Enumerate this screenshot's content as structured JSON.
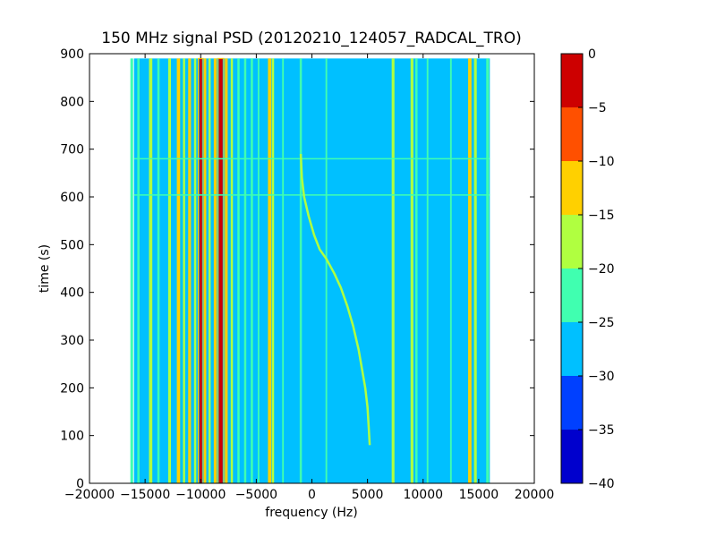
{
  "chart_data": {
    "type": "heatmap",
    "title": "150 MHz signal PSD (20120210_124057_RADCAL_TRO)",
    "xlabel": "frequency (Hz)",
    "ylabel": "time (s)",
    "xlim": [
      -20000,
      20000
    ],
    "ylim": [
      0,
      900
    ],
    "x_ticks": [
      -20000,
      -15000,
      -10000,
      -5000,
      0,
      5000,
      10000,
      15000,
      20000
    ],
    "y_ticks": [
      0,
      100,
      200,
      300,
      400,
      500,
      600,
      700,
      800,
      900
    ],
    "x_tick_labels": [
      "−20000",
      "−15000",
      "−10000",
      "−5000",
      "0",
      "5000",
      "10000",
      "15000",
      "20000"
    ],
    "y_tick_labels": [
      "0",
      "100",
      "200",
      "300",
      "400",
      "500",
      "600",
      "700",
      "800",
      "900"
    ],
    "data_extent": {
      "freq_min": -16000,
      "freq_max": 16000,
      "time_min": 0,
      "time_max": 890
    },
    "background_level_db": -27.5,
    "colorbar": {
      "levels": [
        -40,
        -35,
        -30,
        -25,
        -20,
        -15,
        -10,
        -5,
        0
      ],
      "tick_labels": [
        "−40",
        "−35",
        "−30",
        "−25",
        "−20",
        "−15",
        "−10",
        "−5",
        "0"
      ],
      "colors": [
        "#0000cd",
        "#0040ff",
        "#00c0ff",
        "#40ffb0",
        "#b0ff40",
        "#ffd000",
        "#ff5000",
        "#cd0000"
      ]
    },
    "vertical_lines": [
      {
        "freq": -16200,
        "db": -22,
        "width_hz": 250
      },
      {
        "freq": -15600,
        "db": -22,
        "width_hz": 200
      },
      {
        "freq": -14500,
        "db": -17,
        "width_hz": 300
      },
      {
        "freq": -13800,
        "db": -22,
        "width_hz": 200
      },
      {
        "freq": -12800,
        "db": -17,
        "width_hz": 250
      },
      {
        "freq": -12000,
        "db": -12,
        "width_hz": 300
      },
      {
        "freq": -11500,
        "db": -17,
        "width_hz": 200
      },
      {
        "freq": -11000,
        "db": -12,
        "width_hz": 250
      },
      {
        "freq": -10500,
        "db": -17,
        "width_hz": 200
      },
      {
        "freq": -10000,
        "db": -2,
        "width_hz": 250
      },
      {
        "freq": -9600,
        "db": -12,
        "width_hz": 200
      },
      {
        "freq": -9200,
        "db": -17,
        "width_hz": 200
      },
      {
        "freq": -8700,
        "db": -12,
        "width_hz": 250
      },
      {
        "freq": -8200,
        "db": -2,
        "width_hz": 350
      },
      {
        "freq": -7700,
        "db": -12,
        "width_hz": 250
      },
      {
        "freq": -7200,
        "db": -17,
        "width_hz": 200
      },
      {
        "freq": -6600,
        "db": -22,
        "width_hz": 200
      },
      {
        "freq": -6000,
        "db": -22,
        "width_hz": 200
      },
      {
        "freq": -5400,
        "db": -22,
        "width_hz": 200
      },
      {
        "freq": -4800,
        "db": -22,
        "width_hz": 150
      },
      {
        "freq": -3800,
        "db": -12,
        "width_hz": 300
      },
      {
        "freq": -3500,
        "db": -17,
        "width_hz": 200
      },
      {
        "freq": -2600,
        "db": -22,
        "width_hz": 150
      },
      {
        "freq": -1000,
        "db": -22,
        "width_hz": 200
      },
      {
        "freq": 1300,
        "db": -22,
        "width_hz": 150
      },
      {
        "freq": 7300,
        "db": -17,
        "width_hz": 250
      },
      {
        "freq": 9000,
        "db": -17,
        "width_hz": 250
      },
      {
        "freq": 9400,
        "db": -22,
        "width_hz": 200
      },
      {
        "freq": 10400,
        "db": -22,
        "width_hz": 150
      },
      {
        "freq": 12500,
        "db": -22,
        "width_hz": 150
      },
      {
        "freq": 14200,
        "db": -12,
        "width_hz": 300
      },
      {
        "freq": 14700,
        "db": -17,
        "width_hz": 250
      },
      {
        "freq": 15800,
        "db": -22,
        "width_hz": 250
      }
    ],
    "horizontal_lines": [
      {
        "time": 680,
        "db": -22
      },
      {
        "time": 604,
        "db": -22
      }
    ],
    "drifting_signal": {
      "db": -17,
      "points": [
        [
          -1000,
          690
        ],
        [
          -900,
          640
        ],
        [
          -700,
          600
        ],
        [
          -300,
          560
        ],
        [
          200,
          520
        ],
        [
          700,
          490
        ],
        [
          1300,
          470
        ],
        [
          2000,
          440
        ],
        [
          2600,
          410
        ],
        [
          3200,
          370
        ],
        [
          3700,
          330
        ],
        [
          4200,
          280
        ],
        [
          4500,
          240
        ],
        [
          4800,
          200
        ],
        [
          5000,
          160
        ],
        [
          5100,
          120
        ],
        [
          5200,
          80
        ]
      ]
    }
  }
}
